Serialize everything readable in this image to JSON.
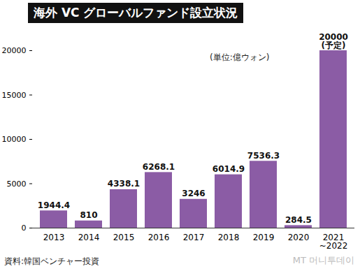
{
  "chart_data": {
    "type": "bar",
    "title": "海外 VC グローバルファンド設立状況",
    "unit": "(単位:億ウォン)",
    "source": "資料:韓国ベンチャー投資",
    "watermark": "MT 머니투데이",
    "categories": [
      "2013",
      "2014",
      "2015",
      "2016",
      "2017",
      "2018",
      "2019",
      "2020",
      "2021\n~2022"
    ],
    "values": [
      1944.4,
      810,
      4338.1,
      6268.1,
      3246,
      6014.9,
      7536.3,
      284.5,
      20000
    ],
    "value_labels": [
      "1944.4",
      "810",
      "4338.1",
      "6268.1",
      "3246",
      "6014.9",
      "7536.3",
      "284.5",
      "20000\n(予定)"
    ],
    "color": "#8b5ca5",
    "ylim": [
      0,
      20000
    ],
    "yticks": [
      0,
      5000,
      10000,
      15000,
      20000
    ],
    "grid": false,
    "data_labels": true
  }
}
